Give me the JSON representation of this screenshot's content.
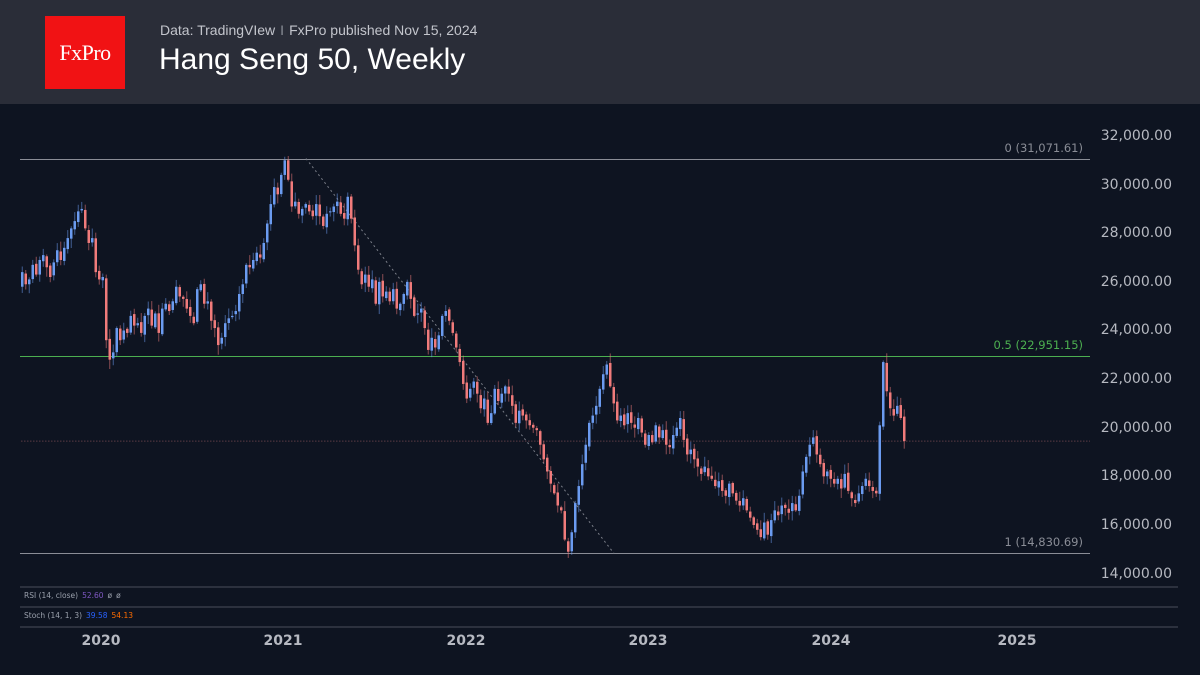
{
  "header": {
    "logo_text": "FxPro",
    "source": "Data: TradingVIew",
    "separator": "I",
    "published": "FxPro published Nov 15, 2024",
    "title": "Hang Seng 50, Weekly"
  },
  "colors": {
    "background": "#0e1421",
    "header_bg": "#2a2d38",
    "logo_bg": "#f11214",
    "up_candle": "#6b9bf0",
    "down_candle": "#f07b7b",
    "fib_mid": "#4caf50",
    "fib_line": "#8a8d96",
    "rsi_value": "#7e57c2",
    "stoch_k": "#2962ff",
    "stoch_d": "#ff6d00"
  },
  "indicators": {
    "rsi": {
      "label": "RSI (14, close)",
      "value": "52.60",
      "extra1": "ø",
      "extra2": "ø"
    },
    "stoch": {
      "label": "Stoch (14, 1, 3)",
      "k": "39.58",
      "d": "54.13"
    }
  },
  "chart_data": {
    "type": "candlestick",
    "title": "Hang Seng 50, Weekly",
    "xlabel": "",
    "ylabel": "",
    "x_ticks": [
      "2020",
      "2021",
      "2022",
      "2023",
      "2024",
      "2025"
    ],
    "y_ticks": [
      "32,000.00",
      "30,000.00",
      "28,000.00",
      "26,000.00",
      "24,000.00",
      "22,000.00",
      "20,000.00",
      "18,000.00",
      "16,000.00",
      "14,000.00"
    ],
    "ylim": [
      13500,
      32500
    ],
    "fibonacci": [
      {
        "level": "0",
        "price": 31071.61,
        "label": "0 (31,071.61)"
      },
      {
        "level": "0.5",
        "price": 22951.15,
        "label": "0.5 (22,951.15)"
      },
      {
        "level": "1",
        "price": 14830.69,
        "label": "1 (14,830.69)"
      }
    ],
    "current_price_line": 19450,
    "grid": false,
    "period": "weekly, Aug 2019 - Nov 2024",
    "weekly_closes": [
      26400,
      25900,
      26100,
      26700,
      26300,
      26900,
      27100,
      26600,
      26200,
      26800,
      27300,
      26900,
      27400,
      27800,
      28200,
      28500,
      28900,
      29000,
      28200,
      27600,
      27800,
      26400,
      26100,
      26200,
      23600,
      22800,
      23100,
      24100,
      23600,
      24000,
      23900,
      24600,
      24200,
      24300,
      23900,
      24600,
      24900,
      24200,
      24700,
      23900,
      24900,
      25100,
      24800,
      25200,
      25800,
      25400,
      25300,
      24900,
      24600,
      24300,
      25700,
      25900,
      25100,
      25200,
      24400,
      24100,
      23400,
      23700,
      24300,
      24500,
      24600,
      24800,
      25500,
      25900,
      26700,
      26600,
      26900,
      27200,
      27000,
      27600,
      28400,
      29200,
      29900,
      29600,
      30400,
      31000,
      30200,
      29100,
      29300,
      28800,
      29000,
      29200,
      28900,
      28700,
      29200,
      28700,
      28300,
      28800,
      28900,
      29100,
      29300,
      28800,
      28600,
      29500,
      28600,
      27500,
      26500,
      25900,
      26300,
      25800,
      26100,
      25100,
      26000,
      25400,
      25600,
      25200,
      25700,
      24900,
      25100,
      25500,
      26000,
      25300,
      24600,
      24700,
      24900,
      24100,
      23200,
      23700,
      23300,
      23800,
      24600,
      24800,
      24400,
      23900,
      23300,
      22700,
      21800,
      21200,
      21600,
      21900,
      21400,
      20800,
      21200,
      20200,
      20600,
      21600,
      21100,
      21400,
      21700,
      21400,
      20900,
      20200,
      20700,
      20500,
      20300,
      20100,
      20000,
      19900,
      19300,
      18700,
      18200,
      17700,
      17300,
      16800,
      16600,
      15400,
      14900,
      15700,
      16900,
      17600,
      18500,
      19300,
      20200,
      20500,
      20900,
      21600,
      22200,
      22600,
      21700,
      21000,
      20300,
      20500,
      20100,
      20600,
      20200,
      20000,
      20400,
      19800,
      19300,
      19700,
      19400,
      20100,
      19600,
      19900,
      19300,
      19200,
      19700,
      20000,
      20400,
      19500,
      18900,
      19100,
      18700,
      18400,
      18100,
      18400,
      18000,
      17900,
      17600,
      17800,
      17400,
      17200,
      17700,
      17300,
      17000,
      16800,
      17100,
      16600,
      16300,
      16000,
      15800,
      15500,
      16100,
      15600,
      16200,
      16600,
      16400,
      16800,
      16700,
      16500,
      16900,
      16600,
      17200,
      18200,
      18800,
      19300,
      19600,
      18900,
      18500,
      18000,
      18200,
      17900,
      17700,
      17900,
      17500,
      18100,
      17400,
      17100,
      16900,
      17300,
      17600,
      17900,
      17600,
      17400,
      17300,
      20100,
      22700,
      21500,
      20800,
      20500,
      20900,
      20400,
      19450
    ]
  },
  "y_axis": {
    "labels": [
      "32,000.00",
      "30,000.00",
      "28,000.00",
      "26,000.00",
      "24,000.00",
      "22,000.00",
      "20,000.00",
      "18,000.00",
      "16,000.00",
      "14,000.00"
    ]
  },
  "x_axis": {
    "labels": [
      "2020",
      "2021",
      "2022",
      "2023",
      "2024",
      "2025"
    ]
  }
}
